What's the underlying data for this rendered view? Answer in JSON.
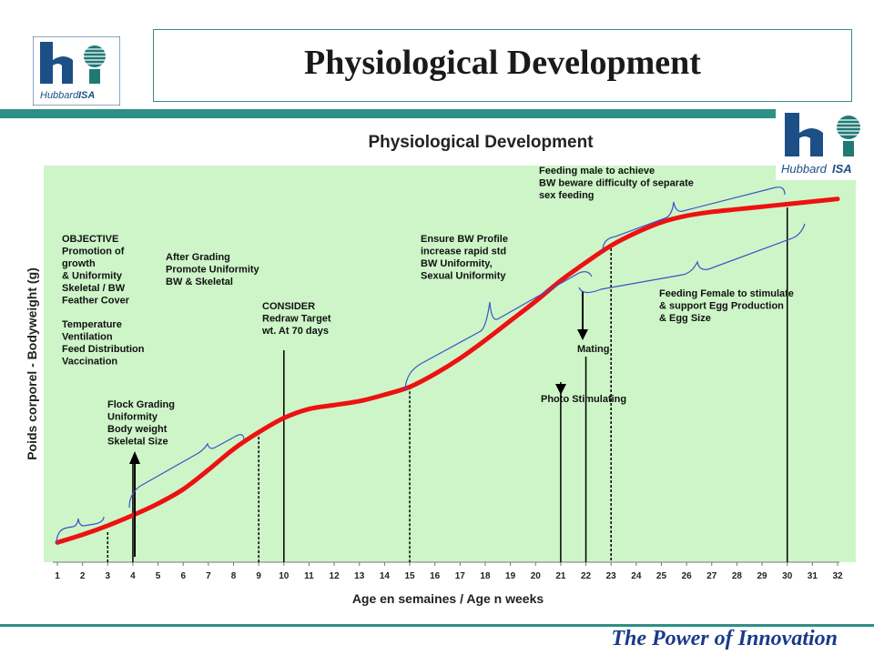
{
  "slide": {
    "title": "Physiological Development",
    "footer": "The Power of Innovation",
    "logo_text_1": "Hubbard",
    "logo_text_2": "ISA"
  },
  "colors": {
    "plot_background": "#cdf5c8",
    "curve": "#ee1111",
    "annotation": "#3a55c8",
    "teal": "#2e8f86",
    "logo_blue": "#1c4f86",
    "logo_teal": "#1f7a74"
  },
  "chart_data": {
    "type": "line",
    "title": "Physiological Development",
    "xlabel": "Age en semaines / Age n weeks",
    "ylabel": "Poids corporel - Bodyweight (g)",
    "x_ticks": [
      1,
      2,
      3,
      4,
      5,
      6,
      7,
      8,
      9,
      10,
      11,
      12,
      13,
      14,
      15,
      16,
      17,
      18,
      19,
      20,
      21,
      22,
      23,
      24,
      25,
      26,
      27,
      28,
      29,
      30,
      31,
      32
    ],
    "xlim": [
      1,
      32
    ],
    "y_tick_labels": false,
    "grid": false,
    "series": [
      {
        "x": [
          1,
          2,
          3,
          4,
          5,
          6,
          7,
          8,
          9,
          10,
          11,
          12,
          13,
          14,
          15,
          16,
          17,
          18,
          19,
          20,
          21,
          22,
          23,
          24,
          25,
          26,
          27,
          28,
          29,
          30,
          31,
          32
        ],
        "y": [
          0.02,
          0.05,
          0.085,
          0.125,
          0.17,
          0.225,
          0.3,
          0.38,
          0.445,
          0.5,
          0.535,
          0.55,
          0.565,
          0.59,
          0.62,
          0.67,
          0.73,
          0.8,
          0.875,
          0.95,
          1.03,
          1.1,
          1.165,
          1.215,
          1.255,
          1.28,
          1.295,
          1.305,
          1.315,
          1.325,
          1.335,
          1.345
        ]
      }
    ],
    "markers": [
      {
        "week": 3,
        "label": ""
      },
      {
        "week": 4,
        "label": "Flock Grading\nUniformity\nBody weight\nSkeletal Size",
        "arrow": "up"
      },
      {
        "week": 9,
        "label": ""
      },
      {
        "week": 10,
        "label": "CONSIDER\nRedraw Target\nwt. At 70 days"
      },
      {
        "week": 15,
        "label": ""
      },
      {
        "week": 21,
        "label": "Photo Stimulating",
        "arrow": "down"
      },
      {
        "week": 22,
        "label": "Mating",
        "arrow": "down"
      },
      {
        "week": 23,
        "label": ""
      },
      {
        "week": 30,
        "label": ""
      }
    ],
    "annotations": [
      {
        "id": "objective",
        "text": "OBJECTIVE\nPromotion of\ngrowth\n& Uniformity\nSkeletal / BW\nFeather Cover"
      },
      {
        "id": "consider-list",
        "text": "Temperature\nVentilation\nFeed Distribution\nVaccination"
      },
      {
        "id": "after-grading",
        "text": "After Grading\nPromote Uniformity\nBW & Skeletal"
      },
      {
        "id": "ensure-bw",
        "text": "Ensure BW Profile\nincrease rapid std\nBW Uniformity,\nSexual Uniformity"
      },
      {
        "id": "feeding-male",
        "text": "Feeding male to achieve\nBW beware difficulty of separate\nsex feeding"
      },
      {
        "id": "feeding-female",
        "text": "Feeding Female to stimulate\n& support Egg Production\n& Egg Size"
      }
    ]
  }
}
